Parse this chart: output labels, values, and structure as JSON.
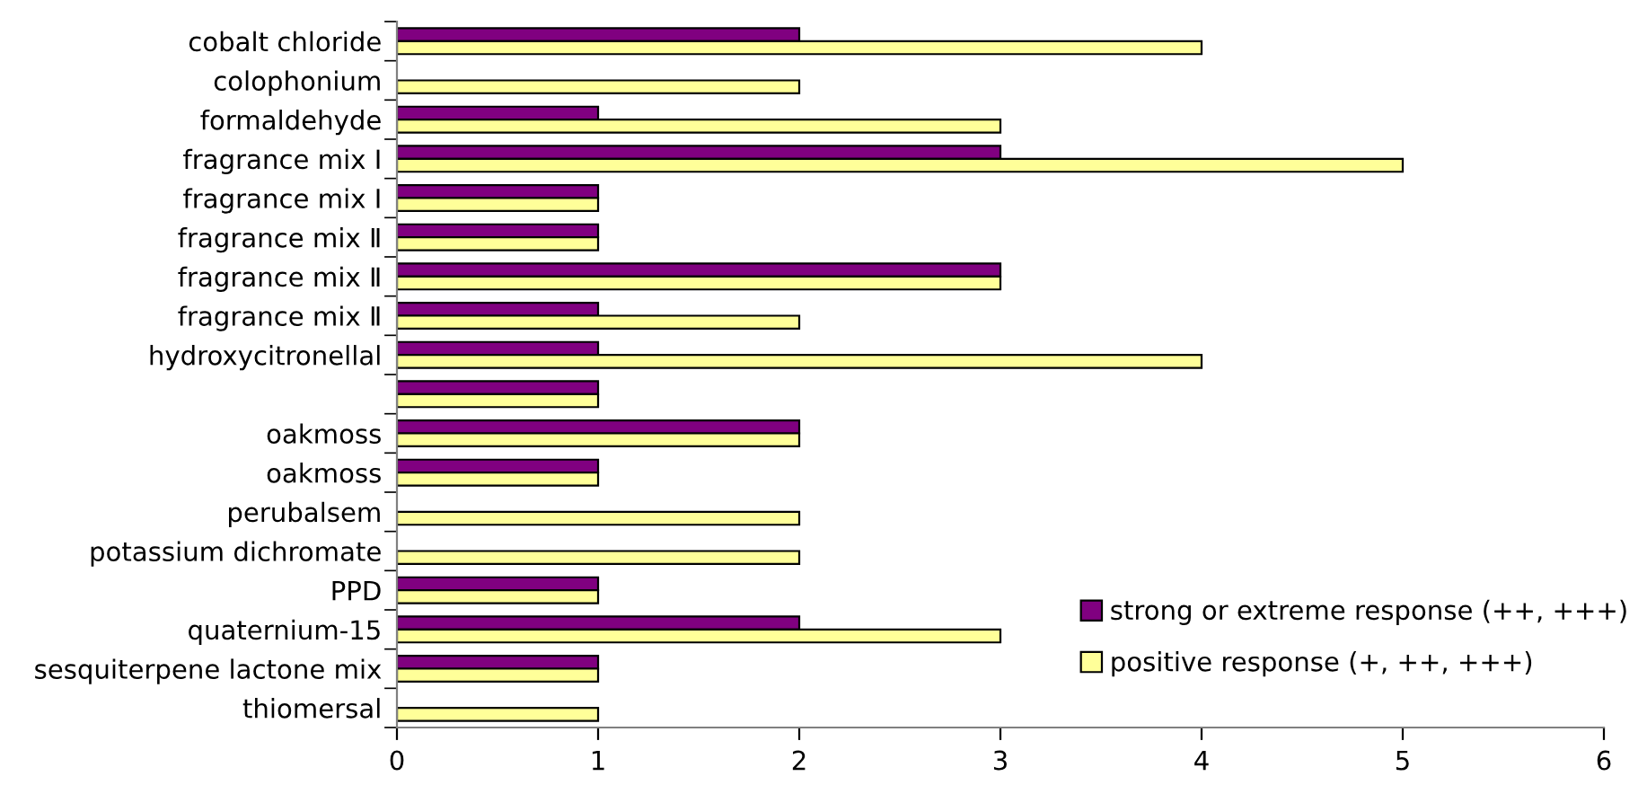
{
  "chart_data": {
    "type": "bar",
    "orientation": "horizontal",
    "categories": [
      "cobalt chloride",
      "colophonium",
      "formaldehyde",
      "fragrance mix I",
      "fragrance mix I",
      "fragrance mix Ⅱ",
      "fragrance mix Ⅱ",
      "fragrance mix Ⅱ",
      "hydroxycitronellal",
      null,
      "oakmoss",
      "oakmoss",
      "perubalsem",
      "potassium dichromate",
      "PPD",
      "quaternium-15",
      "sesquiterpene lactone mix",
      "thiomersal"
    ],
    "series": [
      {
        "name": "strong or extreme response (++, +++)",
        "color": "#800080",
        "values": [
          2,
          0,
          1,
          3,
          1,
          1,
          3,
          1,
          1,
          1,
          2,
          1,
          0,
          0,
          1,
          2,
          1,
          0
        ]
      },
      {
        "name": "positive response (+, ++, +++)",
        "color": "#ffff99",
        "values": [
          4,
          2,
          3,
          5,
          1,
          1,
          3,
          2,
          4,
          1,
          2,
          1,
          2,
          2,
          1,
          3,
          1,
          1
        ]
      }
    ],
    "xlim": [
      0,
      6
    ],
    "xticks": [
      0,
      1,
      2,
      3,
      4,
      5,
      6
    ],
    "grid": false,
    "legend": "right"
  }
}
